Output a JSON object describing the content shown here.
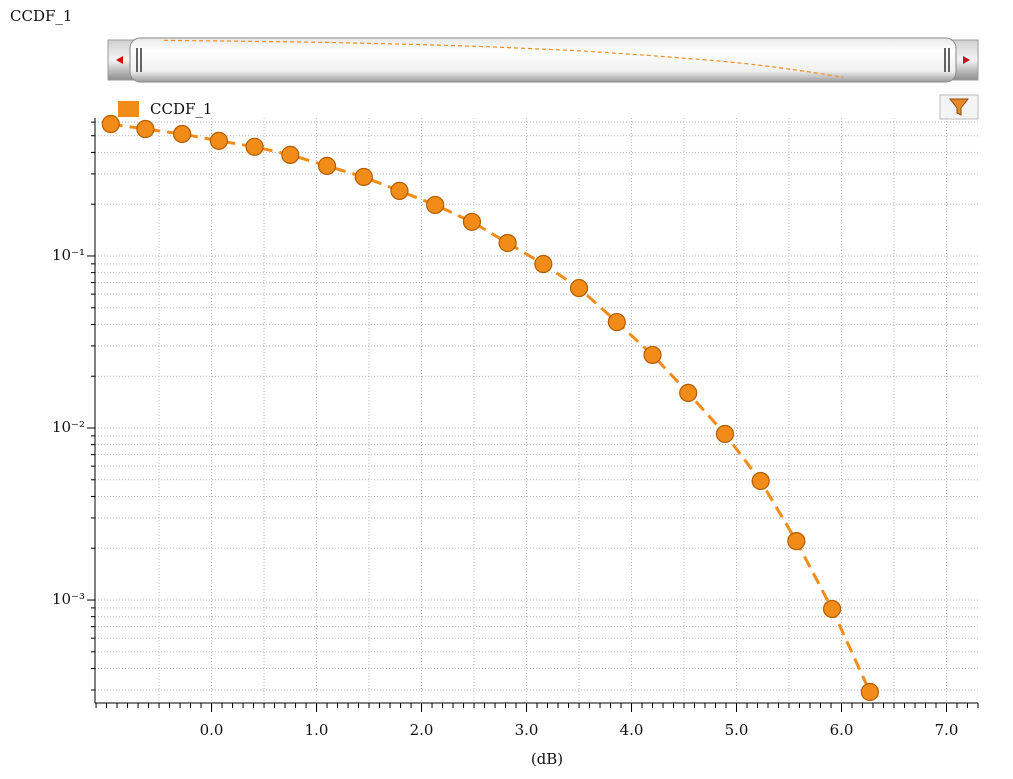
{
  "window_title": "CCDF_1",
  "chart_data": {
    "type": "line",
    "x_label": "(dB)",
    "series": [
      {
        "name": "CCDF_1",
        "color": "#f28c18",
        "x": [
          -0.96,
          -0.63,
          -0.28,
          0.07,
          0.41,
          0.75,
          1.1,
          1.45,
          1.79,
          2.13,
          2.48,
          2.82,
          3.16,
          3.5,
          3.86,
          4.2,
          4.54,
          4.89,
          5.23,
          5.57,
          5.91,
          6.27
        ],
        "values": [
          0.585,
          0.547,
          0.512,
          0.467,
          0.431,
          0.387,
          0.334,
          0.288,
          0.239,
          0.198,
          0.158,
          0.119,
          0.0898,
          0.0651,
          0.0413,
          0.0266,
          0.016,
          0.00923,
          0.00492,
          0.0022,
          0.000887,
          0.000292
        ]
      }
    ],
    "xlim": [
      -1.11,
      7.3
    ],
    "ylim": [
      0.000252,
      0.634
    ],
    "xticks": [
      {
        "value": 0,
        "label": "0.0"
      },
      {
        "value": 1,
        "label": "1.0"
      },
      {
        "value": 2,
        "label": "2.0"
      },
      {
        "value": 3,
        "label": "3.0"
      },
      {
        "value": 4,
        "label": "4.0"
      },
      {
        "value": 5,
        "label": "5.0"
      },
      {
        "value": 6,
        "label": "6.0"
      },
      {
        "value": 7,
        "label": "7.0"
      }
    ],
    "yticks": [
      {
        "value": 0.1,
        "label": "10⁻¹"
      },
      {
        "value": 0.01,
        "label": "10⁻²"
      },
      {
        "value": 0.001,
        "label": "10⁻³"
      }
    ],
    "log_y": true,
    "grid": true,
    "legend": "top-left"
  }
}
